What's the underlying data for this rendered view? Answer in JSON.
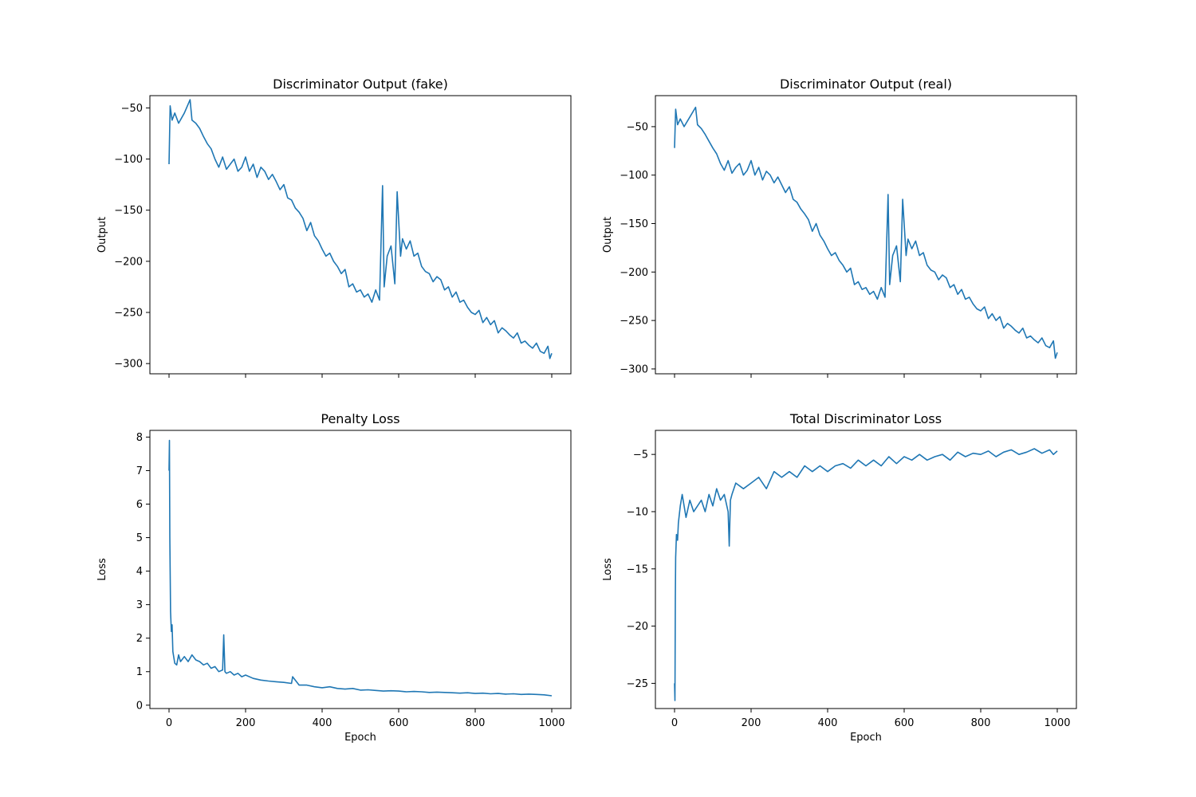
{
  "chart_data": [
    {
      "type": "line",
      "title": "Discriminator Output (fake)",
      "xlabel": "",
      "ylabel": "Output",
      "xlim": [
        -50,
        1050
      ],
      "ylim": [
        -310,
        -38
      ],
      "xticks": [
        0,
        200,
        400,
        600,
        800,
        1000
      ],
      "show_xticklabels": false,
      "yticks": [
        -300,
        -250,
        -200,
        -150,
        -100,
        -50
      ],
      "ytick_labels": [
        "−300",
        "−250",
        "−200",
        "−150",
        "−100",
        "−50"
      ],
      "grid": false,
      "color": "#1f77b4",
      "series": [
        {
          "x": [
            0,
            3,
            8,
            15,
            25,
            40,
            55,
            60,
            70,
            80,
            90,
            100,
            110,
            120,
            130,
            140,
            150,
            160,
            170,
            180,
            190,
            200,
            210,
            220,
            230,
            240,
            250,
            260,
            270,
            280,
            290,
            300,
            310,
            320,
            330,
            340,
            350,
            360,
            370,
            380,
            390,
            400,
            410,
            420,
            430,
            440,
            450,
            460,
            470,
            480,
            490,
            500,
            510,
            520,
            530,
            540,
            550,
            558,
            562,
            570,
            580,
            590,
            596,
            605,
            610,
            620,
            630,
            640,
            650,
            660,
            670,
            680,
            690,
            700,
            710,
            720,
            730,
            740,
            750,
            760,
            770,
            780,
            790,
            800,
            810,
            820,
            830,
            840,
            850,
            860,
            870,
            880,
            890,
            900,
            910,
            920,
            930,
            940,
            950,
            960,
            970,
            980,
            990,
            995,
            1000
          ],
          "y": [
            -105,
            -48,
            -62,
            -55,
            -65,
            -55,
            -42,
            -62,
            -65,
            -70,
            -78,
            -85,
            -90,
            -100,
            -108,
            -98,
            -110,
            -105,
            -100,
            -112,
            -108,
            -98,
            -112,
            -105,
            -118,
            -108,
            -112,
            -120,
            -115,
            -122,
            -130,
            -125,
            -138,
            -140,
            -148,
            -152,
            -158,
            -170,
            -162,
            -175,
            -180,
            -188,
            -195,
            -192,
            -200,
            -205,
            -212,
            -208,
            -225,
            -222,
            -230,
            -228,
            -235,
            -232,
            -240,
            -228,
            -238,
            -126,
            -225,
            -195,
            -185,
            -222,
            -132,
            -195,
            -178,
            -188,
            -180,
            -195,
            -192,
            -205,
            -210,
            -212,
            -220,
            -215,
            -218,
            -228,
            -225,
            -235,
            -230,
            -240,
            -238,
            -245,
            -250,
            -252,
            -248,
            -260,
            -255,
            -262,
            -258,
            -270,
            -265,
            -268,
            -272,
            -275,
            -270,
            -280,
            -278,
            -282,
            -285,
            -280,
            -288,
            -290,
            -283,
            -295,
            -290
          ]
        }
      ]
    },
    {
      "type": "line",
      "title": "Discriminator Output (real)",
      "xlabel": "",
      "ylabel": "Output",
      "xlim": [
        -50,
        1050
      ],
      "ylim": [
        -305,
        -18
      ],
      "xticks": [
        0,
        200,
        400,
        600,
        800,
        1000
      ],
      "show_xticklabels": false,
      "yticks": [
        -300,
        -250,
        -200,
        -150,
        -100,
        -50
      ],
      "ytick_labels": [
        "−300",
        "−250",
        "−200",
        "−150",
        "−100",
        "−50"
      ],
      "grid": false,
      "color": "#1f77b4",
      "series": [
        {
          "x": [
            0,
            3,
            8,
            15,
            25,
            40,
            55,
            60,
            70,
            80,
            90,
            100,
            110,
            120,
            130,
            140,
            150,
            160,
            170,
            180,
            190,
            200,
            210,
            220,
            230,
            240,
            250,
            260,
            270,
            280,
            290,
            300,
            310,
            320,
            330,
            340,
            350,
            360,
            370,
            380,
            390,
            400,
            410,
            420,
            430,
            440,
            450,
            460,
            470,
            480,
            490,
            500,
            510,
            520,
            530,
            540,
            550,
            558,
            562,
            570,
            580,
            590,
            596,
            605,
            610,
            620,
            630,
            640,
            650,
            660,
            670,
            680,
            690,
            700,
            710,
            720,
            730,
            740,
            750,
            760,
            770,
            780,
            790,
            800,
            810,
            820,
            830,
            840,
            850,
            860,
            870,
            880,
            890,
            900,
            910,
            920,
            930,
            940,
            950,
            960,
            970,
            980,
            990,
            995,
            1000
          ],
          "y": [
            -72,
            -32,
            -48,
            -42,
            -50,
            -40,
            -30,
            -48,
            -52,
            -58,
            -65,
            -72,
            -78,
            -88,
            -95,
            -85,
            -98,
            -92,
            -88,
            -100,
            -95,
            -85,
            -100,
            -92,
            -105,
            -96,
            -100,
            -108,
            -102,
            -110,
            -118,
            -112,
            -125,
            -128,
            -135,
            -140,
            -146,
            -158,
            -150,
            -162,
            -168,
            -176,
            -183,
            -180,
            -188,
            -193,
            -200,
            -196,
            -213,
            -210,
            -218,
            -216,
            -223,
            -220,
            -228,
            -216,
            -226,
            -120,
            -213,
            -183,
            -173,
            -210,
            -125,
            -183,
            -166,
            -176,
            -168,
            -183,
            -180,
            -193,
            -198,
            -200,
            -208,
            -203,
            -206,
            -216,
            -213,
            -223,
            -218,
            -228,
            -226,
            -233,
            -238,
            -240,
            -236,
            -248,
            -243,
            -250,
            -246,
            -258,
            -253,
            -256,
            -260,
            -263,
            -258,
            -268,
            -266,
            -270,
            -273,
            -268,
            -276,
            -278,
            -271,
            -289,
            -283
          ]
        }
      ]
    },
    {
      "type": "line",
      "title": "Penalty Loss",
      "xlabel": "Epoch",
      "ylabel": "Loss",
      "xlim": [
        -50,
        1050
      ],
      "ylim": [
        -0.1,
        8.2
      ],
      "xticks": [
        0,
        200,
        400,
        600,
        800,
        1000
      ],
      "show_xticklabels": true,
      "yticks": [
        0,
        1,
        2,
        3,
        4,
        5,
        6,
        7,
        8
      ],
      "ytick_labels": [
        "0",
        "1",
        "2",
        "3",
        "4",
        "5",
        "6",
        "7",
        "8"
      ],
      "grid": false,
      "color": "#1f77b4",
      "series": [
        {
          "x": [
            0,
            1,
            2,
            4,
            6,
            8,
            10,
            15,
            20,
            25,
            30,
            40,
            50,
            60,
            70,
            80,
            90,
            100,
            110,
            120,
            130,
            140,
            143,
            146,
            150,
            160,
            170,
            180,
            190,
            200,
            220,
            240,
            260,
            280,
            300,
            320,
            323,
            340,
            360,
            380,
            400,
            420,
            440,
            460,
            480,
            500,
            520,
            540,
            560,
            580,
            600,
            620,
            640,
            660,
            680,
            700,
            720,
            740,
            760,
            780,
            800,
            820,
            840,
            860,
            880,
            900,
            920,
            940,
            960,
            980,
            1000
          ],
          "y": [
            7.0,
            7.9,
            5.0,
            2.8,
            2.2,
            2.4,
            1.6,
            1.25,
            1.2,
            1.5,
            1.3,
            1.45,
            1.3,
            1.5,
            1.35,
            1.3,
            1.2,
            1.25,
            1.1,
            1.15,
            1.0,
            1.05,
            2.1,
            1.0,
            0.95,
            1.0,
            0.9,
            0.95,
            0.85,
            0.9,
            0.8,
            0.75,
            0.72,
            0.7,
            0.68,
            0.65,
            0.85,
            0.6,
            0.6,
            0.55,
            0.52,
            0.55,
            0.5,
            0.48,
            0.5,
            0.45,
            0.46,
            0.44,
            0.42,
            0.43,
            0.42,
            0.4,
            0.41,
            0.4,
            0.38,
            0.39,
            0.38,
            0.37,
            0.36,
            0.37,
            0.35,
            0.36,
            0.34,
            0.35,
            0.33,
            0.34,
            0.32,
            0.33,
            0.32,
            0.31,
            0.28
          ]
        }
      ]
    },
    {
      "type": "line",
      "title": "Total Discriminator Loss",
      "xlabel": "Epoch",
      "ylabel": "Loss",
      "xlim": [
        -50,
        1050
      ],
      "ylim": [
        -27.2,
        -2.9
      ],
      "xticks": [
        0,
        200,
        400,
        600,
        800,
        1000
      ],
      "show_xticklabels": true,
      "yticks": [
        -25,
        -20,
        -15,
        -10,
        -5
      ],
      "ytick_labels": [
        "−25",
        "−20",
        "−15",
        "−10",
        "−5"
      ],
      "grid": false,
      "color": "#1f77b4",
      "series": [
        {
          "x": [
            0,
            1,
            2,
            3,
            5,
            8,
            10,
            15,
            20,
            30,
            40,
            50,
            60,
            70,
            80,
            90,
            100,
            110,
            120,
            130,
            140,
            143,
            146,
            150,
            160,
            180,
            200,
            220,
            240,
            260,
            280,
            300,
            320,
            340,
            360,
            380,
            400,
            420,
            440,
            460,
            480,
            500,
            520,
            540,
            560,
            580,
            600,
            620,
            640,
            660,
            680,
            700,
            720,
            740,
            760,
            780,
            800,
            820,
            840,
            860,
            880,
            900,
            920,
            940,
            960,
            980,
            990,
            1000
          ],
          "y": [
            -25.0,
            -26.5,
            -17.5,
            -14.0,
            -12.0,
            -12.5,
            -11.0,
            -9.5,
            -8.5,
            -10.5,
            -9.0,
            -10.0,
            -9.5,
            -9.0,
            -10.0,
            -8.5,
            -9.5,
            -8.0,
            -9.0,
            -8.5,
            -10.0,
            -13.0,
            -9.0,
            -8.5,
            -7.5,
            -8.0,
            -7.5,
            -7.0,
            -8.0,
            -6.5,
            -7.0,
            -6.5,
            -7.0,
            -6.0,
            -6.5,
            -6.0,
            -6.5,
            -6.0,
            -5.8,
            -6.2,
            -5.5,
            -6.0,
            -5.5,
            -6.0,
            -5.2,
            -5.8,
            -5.2,
            -5.5,
            -5.0,
            -5.5,
            -5.2,
            -5.0,
            -5.5,
            -4.8,
            -5.2,
            -4.9,
            -5.0,
            -4.7,
            -5.2,
            -4.8,
            -4.6,
            -5.0,
            -4.8,
            -4.5,
            -4.9,
            -4.6,
            -5.0,
            -4.7
          ]
        }
      ]
    }
  ]
}
